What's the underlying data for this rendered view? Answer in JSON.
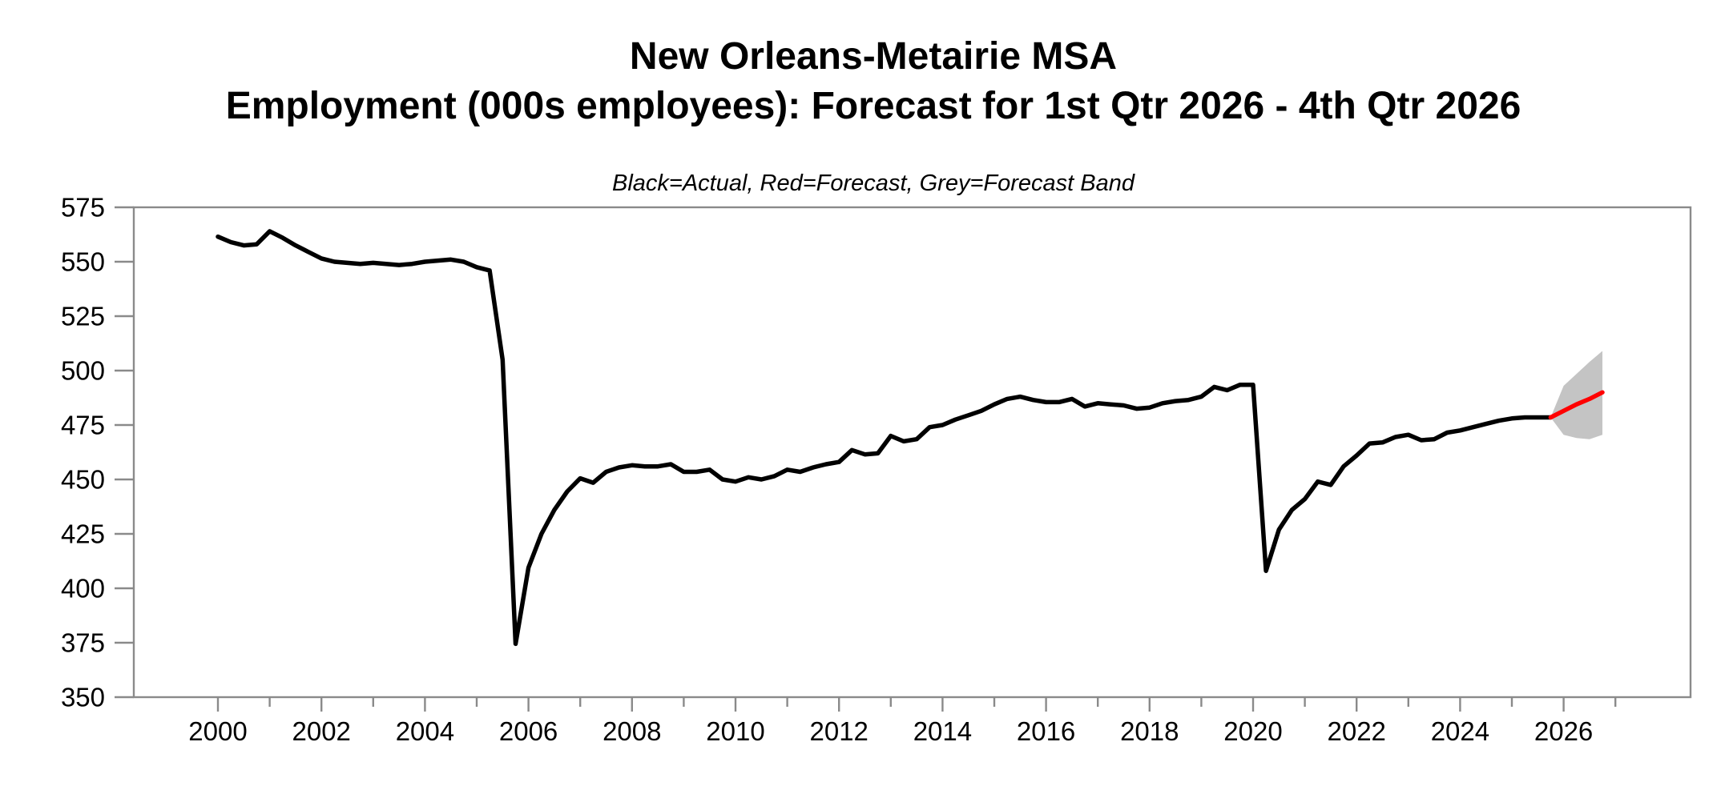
{
  "chart_data": {
    "type": "line",
    "title_line1": "New Orleans-Metairie MSA",
    "title_line2": "Employment (000s employees): Forecast for 1st Qtr 2026 - 4th Qtr 2026",
    "subtitle": "Black=Actual, Red=Forecast, Grey=Forecast Band",
    "colors": {
      "actual": "#000000",
      "forecast": "#ff0000",
      "band": "#c4c4c4",
      "frame": "#8a8a8a",
      "text": "#000000"
    },
    "yaxis": {
      "ticks": [
        350,
        375,
        400,
        425,
        450,
        475,
        500,
        525,
        550,
        575
      ],
      "range": [
        350,
        575
      ]
    },
    "xaxis": {
      "label_years": [
        2000,
        2002,
        2004,
        2006,
        2008,
        2010,
        2012,
        2014,
        2016,
        2018,
        2020,
        2022,
        2024,
        2026
      ],
      "minor_years": [
        2001,
        2003,
        2005,
        2007,
        2009,
        2011,
        2013,
        2015,
        2017,
        2019,
        2021,
        2023,
        2025,
        2027
      ],
      "range_years": [
        1998.4,
        2028.5
      ]
    },
    "series": {
      "actual": {
        "label": "Actual",
        "start_year": 2000.0,
        "step_years": 0.25,
        "values": [
          561.5,
          559,
          557.5,
          558,
          564,
          561,
          557.5,
          554.5,
          551.5,
          550,
          549.5,
          549,
          549.5,
          549,
          548.5,
          549,
          550,
          550.5,
          551,
          550,
          547.5,
          546,
          505,
          374.5,
          409.5,
          425,
          436,
          444.5,
          450.5,
          448.5,
          453.5,
          455.5,
          456.5,
          456,
          456,
          457,
          453.5,
          453.5,
          454.5,
          450,
          449,
          451,
          450,
          451.5,
          454.5,
          453.5,
          455.5,
          457,
          458,
          463.5,
          461.5,
          462,
          470,
          467.5,
          468.5,
          474,
          475,
          477.5,
          479.5,
          481.5,
          484.5,
          487,
          488,
          486.5,
          485.5,
          485.5,
          487,
          483.5,
          485,
          484.5,
          484,
          482.5,
          483,
          485,
          486,
          486.5,
          488,
          492.5,
          491,
          493.5,
          493.5,
          408,
          427,
          436,
          441,
          449,
          447.5,
          456,
          461,
          466.5,
          467,
          469.5,
          470.5,
          468,
          468.5,
          471.5,
          472.5,
          474,
          475.5,
          477,
          478,
          478.5,
          478.5,
          478.5
        ]
      },
      "forecast": {
        "label": "Forecast",
        "start_year": 2025.75,
        "step_years": 0.25,
        "values": [
          478.5,
          481.5,
          484.5,
          487,
          490
        ]
      },
      "band": {
        "label": "Forecast Band",
        "start_year": 2025.75,
        "step_years": 0.25,
        "upper": [
          478.5,
          493,
          498.5,
          504,
          509
        ],
        "lower": [
          478.5,
          470.5,
          469,
          468.5,
          470.5
        ]
      }
    }
  }
}
